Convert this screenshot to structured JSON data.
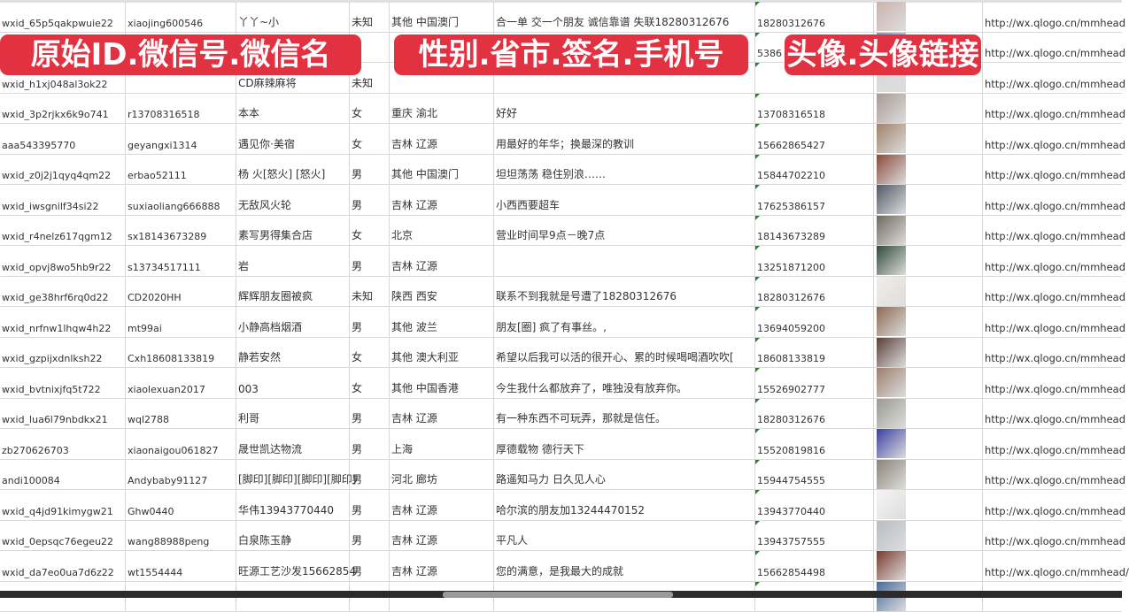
{
  "overlay_labels": [
    "原始ID.微信号.微信名",
    "性别.省市.签名.手机号",
    "头像.头像链接"
  ],
  "rows": [
    {
      "id": "wxid_65p5qakpwuie22",
      "wechat": "xiaojing600546",
      "name": "丫丫~小",
      "gender": "未知",
      "region": "其他 中国澳门",
      "signature": "合一单 交一个朋友 诚信靠谱 失联18280312676",
      "phone": "18280312676",
      "avatar_color": "#c9b3ac",
      "url": "http://wx.qlogo.cn/mmhead"
    },
    {
      "id": "",
      "wechat": "",
      "name": "",
      "gender": "",
      "region": "",
      "signature": "",
      "phone": "5386",
      "avatar_color": "#8b8fb8",
      "url": "http://wx.qlogo.cn/mmhead"
    },
    {
      "id": "wxid_h1xj048al3ok22",
      "wechat": "",
      "name": "CD麻辣麻将",
      "gender": "未知",
      "region": "",
      "signature": "",
      "phone": "",
      "avatar_color": "#d9d9de",
      "url": "http://wx.qlogo.cn/mmhead"
    },
    {
      "id": "wxid_3p2rjkx6k9o741",
      "wechat": "r13708316518",
      "name": "本本",
      "gender": "女",
      "region": "重庆 渝北",
      "signature": "好好",
      "phone": "13708316518",
      "avatar_color": "#a89a94",
      "url": "http://wx.qlogo.cn/mmhead"
    },
    {
      "id": "aaa543395770",
      "wechat": "geyangxi1314",
      "name": "遇见你·美宿",
      "gender": "女",
      "region": "吉林 辽源",
      "signature": "用最好的年华；换最深的教训",
      "phone": "15662865427",
      "avatar_color": "#a0826a",
      "url": "http://wx.qlogo.cn/mmhead"
    },
    {
      "id": "wxid_z0j2j1qyq4qm22",
      "wechat": "erbao52111",
      "name": "杨 火[怒火] [怒火]",
      "gender": "男",
      "region": "其他 中国澳门",
      "signature": "坦坦荡荡 稳住别浪……",
      "phone": "15844702210",
      "avatar_color": "#8a4a3c",
      "url": "http://wx.qlogo.cn/mmhead"
    },
    {
      "id": "wxid_iwsgnilf34si22",
      "wechat": "suxiaoliang666888",
      "name": "无敌风火轮",
      "gender": "男",
      "region": "吉林 辽源",
      "signature": "小西西要超车",
      "phone": "17625386157",
      "avatar_color": "#505866",
      "url": "http://wx.qlogo.cn/mmhead"
    },
    {
      "id": "wxid_r4nelz617qgm12",
      "wechat": "sx18143673289",
      "name": "素写男得集合店",
      "gender": "女",
      "region": "北京",
      "signature": "营业时间早9点－晚7点",
      "phone": "18143673289",
      "avatar_color": "#6f6a60",
      "url": "http://wx.qlogo.cn/mmhead"
    },
    {
      "id": "wxid_opvj8wo5hb9r22",
      "wechat": "s13734517111",
      "name": "岩",
      "gender": "男",
      "region": "吉林 辽源",
      "signature": "",
      "phone": "13251871200",
      "avatar_color": "#2f4a3a",
      "url": "http://wx.qlogo.cn/mmhead"
    },
    {
      "id": "wxid_ge38hrf6rq0d22",
      "wechat": "CD2020HH",
      "name": "辉辉朋友圈被疯",
      "gender": "未知",
      "region": "陕西 西安",
      "signature": "联系不到我就是号遭了18280312676",
      "phone": "18280312676",
      "avatar_color": "#f2ece8",
      "url": "http://wx.qlogo.cn/mmhead"
    },
    {
      "id": "wxid_nrfnw1lhqw4h22",
      "wechat": "mt99ai",
      "name": "小静高档烟酒",
      "gender": "男",
      "region": "其他 波兰",
      "signature": "朋友[圈] 疯了有事丝。,",
      "phone": "13694059200",
      "avatar_color": "#8c6a52",
      "url": "http://wx.qlogo.cn/mmhead"
    },
    {
      "id": "wxid_gzpijxdnlksh22",
      "wechat": "Cxh18608133819",
      "name": "静若安然",
      "gender": "女",
      "region": "其他 澳大利亚",
      "signature": "希望以后我可以活的很开心、累的时候喝喝酒吹吹[",
      "phone": "18608133819",
      "avatar_color": "#5a4038",
      "url": "http://wx.qlogo.cn/mmhead"
    },
    {
      "id": "wxid_bvtnixjfq5t722",
      "wechat": "xiaolexuan2017",
      "name": "003",
      "gender": "女",
      "region": "其他 中国香港",
      "signature": "今生我什么都放弃了，唯独没有放弃你。",
      "phone": "15526902777",
      "avatar_color": "#9c7e70",
      "url": "http://wx.qlogo.cn/mmhead"
    },
    {
      "id": "wxid_lua6l79nbdkx21",
      "wechat": "wql2788",
      "name": "利哥",
      "gender": "男",
      "region": "吉林 辽源",
      "signature": "有一种东西不可玩弄，那就是信任。",
      "phone": "18280312676",
      "avatar_color": "#9a9a92",
      "url": "http://wx.qlogo.cn/mmhead"
    },
    {
      "id": "zb270626703",
      "wechat": "xiaonaigou061827",
      "name": "晟世凯达物流",
      "gender": "男",
      "region": "上海",
      "signature": "厚德载物 德行天下",
      "phone": "15520819816",
      "avatar_color": "#3a3fa0",
      "url": "http://wx.qlogo.cn/mmhead"
    },
    {
      "id": "andi100084",
      "wechat": "Andybaby91127",
      "name": "[脚印][脚印][脚印][脚印]",
      "gender": "男",
      "region": "河北 廊坊",
      "signature": "路遥知马力 日久见人心",
      "phone": "15944754555",
      "avatar_color": "#8a8478",
      "url": "http://wx.qlogo.cn/mmhead"
    },
    {
      "id": "wxid_q4jd91kimygw21",
      "wechat": "Ghw0440",
      "name": "华伟13943770440",
      "gender": "男",
      "region": "吉林 辽源",
      "signature": "哈尔滨的朋友加13244470152",
      "phone": "13943770440",
      "avatar_color": "#f4f4f4",
      "url": "http://wx.qlogo.cn/mmhead"
    },
    {
      "id": "wxid_0epsqc76egeu22",
      "wechat": "wang88988peng",
      "name": "白泉陈玉静",
      "gender": "男",
      "region": "吉林 辽源",
      "signature": "平凡人",
      "phone": "13943757555",
      "avatar_color": "#b8bcc4",
      "url": "http://wx.qlogo.cn/mmhead"
    },
    {
      "id": "wxid_da7eo0ua7d6z22",
      "wechat": "wt1554444",
      "name": "旺源工艺沙发15662854",
      "gender": "男",
      "region": "吉林 辽源",
      "signature": "您的满意，是我最大的成就",
      "phone": "15662854498",
      "avatar_color": "#7a3a2e",
      "url": "http://wx.qlogo.cn/mmhead/"
    },
    {
      "id": "",
      "wechat": "",
      "name": "",
      "gender": "",
      "region": "",
      "signature": "",
      "phone": "",
      "avatar_color": "#4a6a9a",
      "url": ""
    }
  ],
  "colors": {
    "label_bg": "#e23140",
    "grid": "#d8d8d8",
    "comment_marker": "#2e7d32"
  }
}
